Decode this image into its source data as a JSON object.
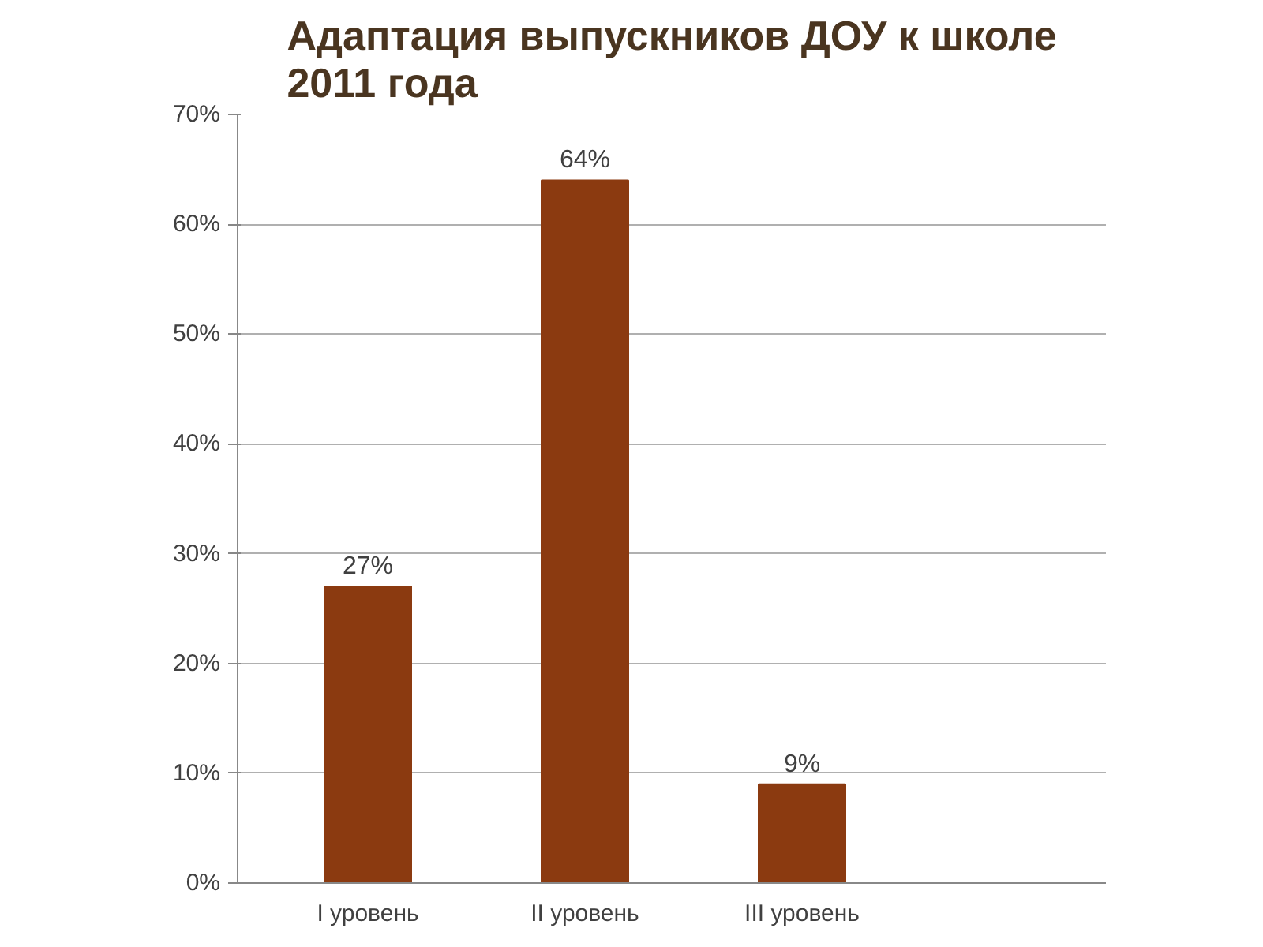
{
  "chart_data": {
    "type": "bar",
    "title": "Адаптация выпускников ДОУ к школе\n2011 года",
    "categories": [
      "I уровень",
      "II уровень",
      "III уровень"
    ],
    "values": [
      27,
      64,
      9
    ],
    "value_labels": [
      "27%",
      "64%",
      "9%"
    ],
    "color": "#8b3a10",
    "ylim": [
      0,
      70
    ],
    "yticks": [
      {
        "value": 0,
        "label": "0%"
      },
      {
        "value": 10,
        "label": "10%"
      },
      {
        "value": 20,
        "label": "20%"
      },
      {
        "value": 30,
        "label": "30%"
      },
      {
        "value": 40,
        "label": "40%"
      },
      {
        "value": 50,
        "label": "50%"
      },
      {
        "value": 60,
        "label": "60%"
      },
      {
        "value": 70,
        "label": "70%"
      }
    ],
    "grid": "y"
  }
}
